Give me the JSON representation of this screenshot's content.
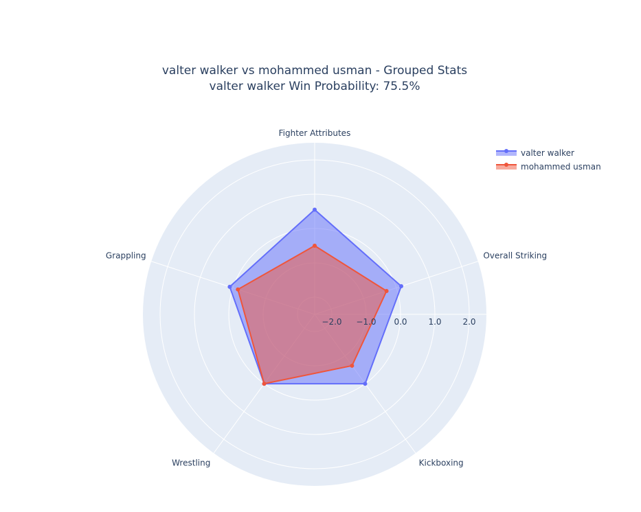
{
  "chart_data": {
    "type": "radar",
    "title_line1": "valter walker vs mohammed usman - Grouped Stats",
    "title_line2": "valter walker Win Probability: 75.5%",
    "categories": [
      "Fighter Attributes",
      "Overall Striking",
      "Kickboxing",
      "Wrestling",
      "Grappling"
    ],
    "radial_range": [
      -2.5,
      2.5
    ],
    "radial_ticks": [
      -2.0,
      -1.0,
      0.0,
      1.0,
      2.0
    ],
    "radial_tick_labels": [
      "−2.0",
      "−1.0",
      "0.0",
      "1.0",
      "2.0"
    ],
    "grid": true,
    "legend_position": "top-right",
    "series": [
      {
        "name": "valter walker",
        "color": "#636efa",
        "values": [
          0.55,
          0.15,
          0.0,
          0.0,
          0.1
        ]
      },
      {
        "name": "mohammed usman",
        "color": "#ef553b",
        "values": [
          -0.5,
          -0.3,
          -0.65,
          0.0,
          -0.15
        ]
      }
    ]
  }
}
